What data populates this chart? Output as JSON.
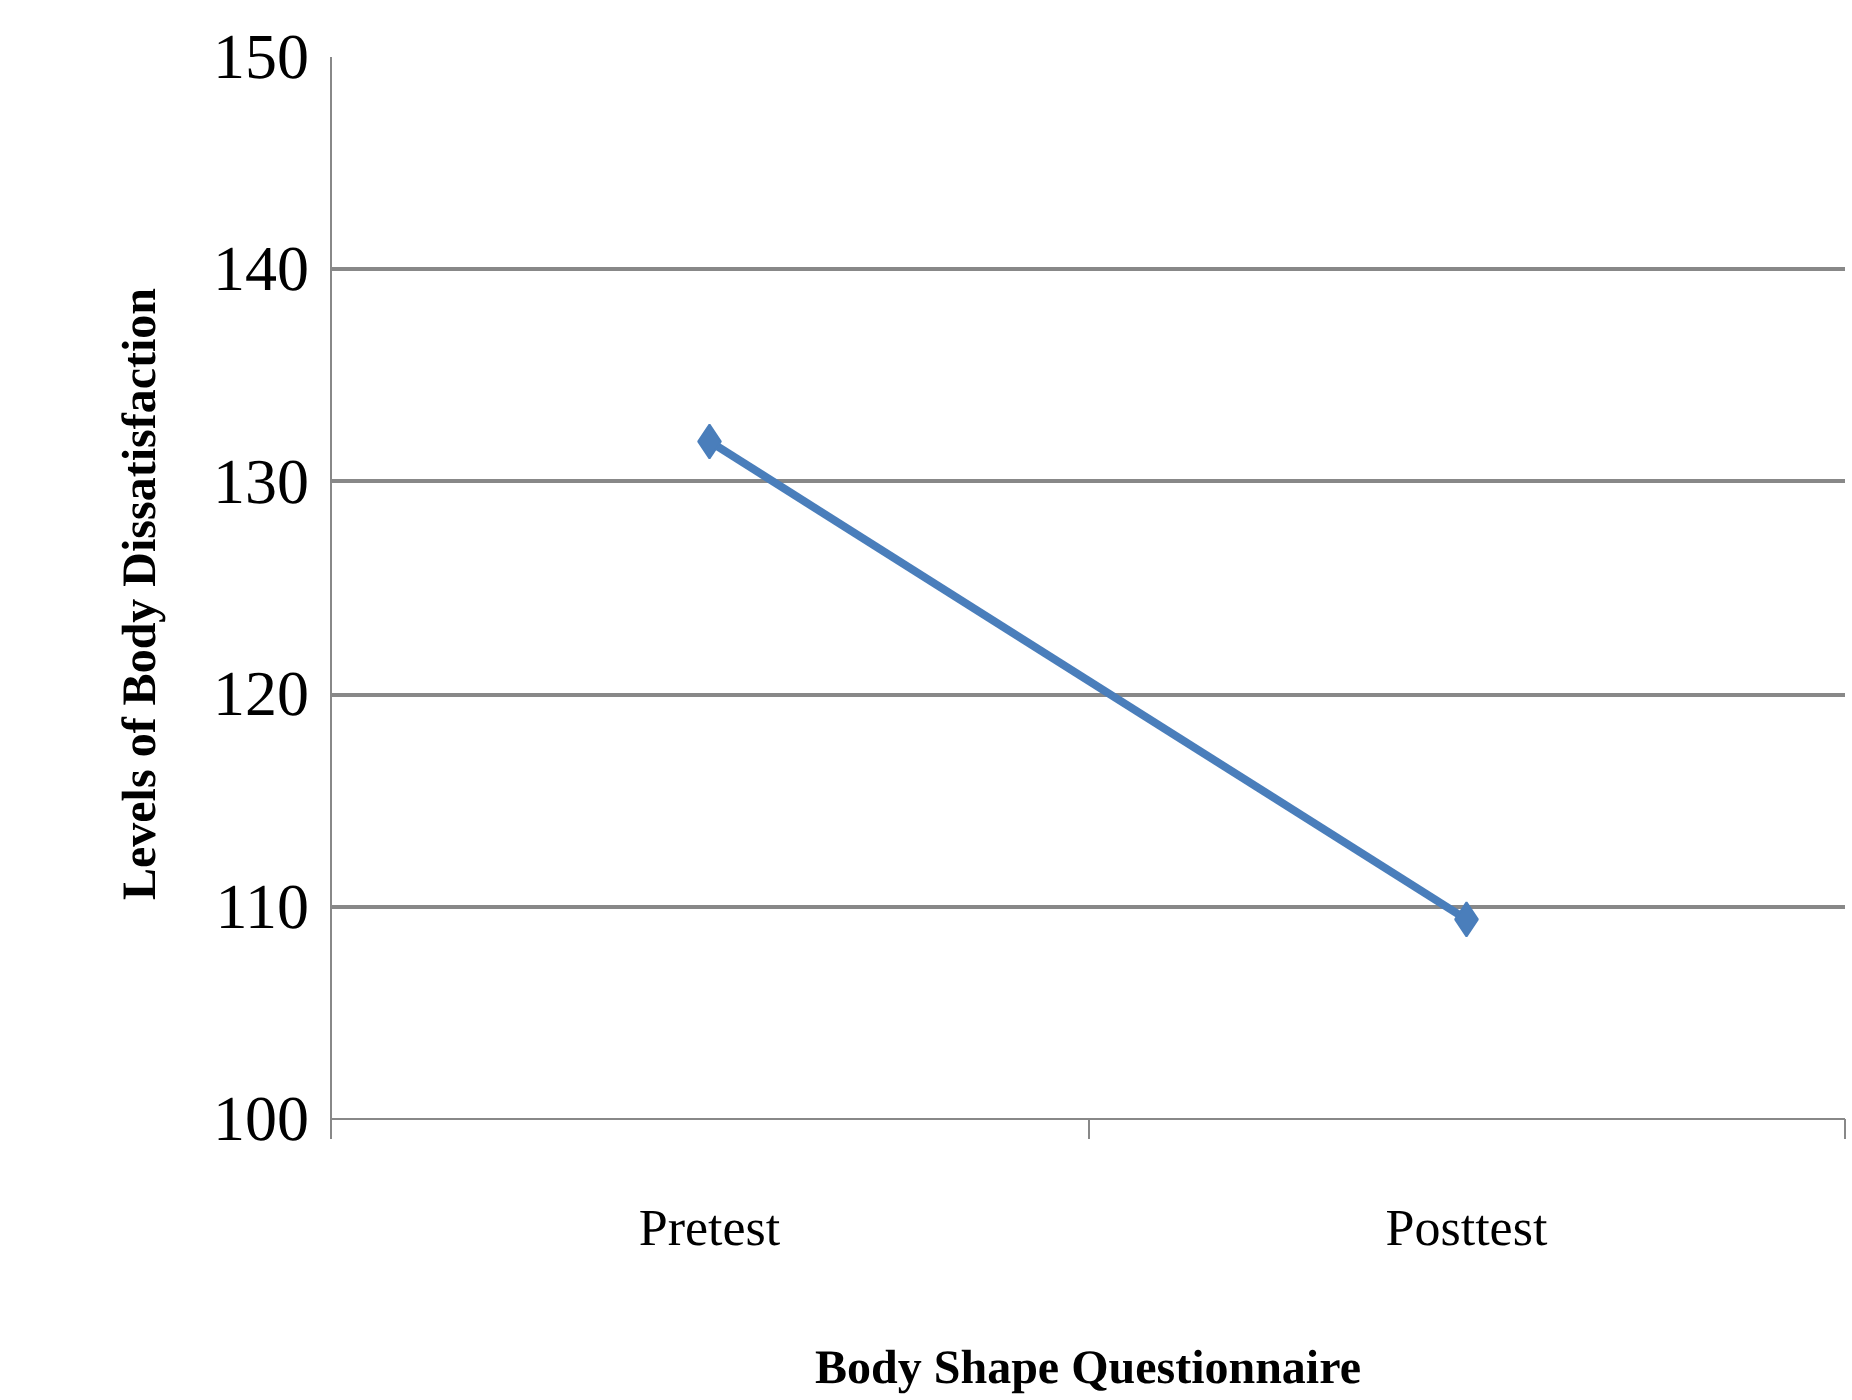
{
  "chart_data": {
    "type": "line",
    "categories": [
      "Pretest",
      "Posttest"
    ],
    "series": [
      {
        "color": "#4a7ebb",
        "values": [
          131.9,
          109.4
        ]
      }
    ],
    "xlabel": "Body Shape Questionnaire",
    "ylabel": "Levels  of Body Dissatisfaction",
    "ylim": [
      100,
      150
    ],
    "yticks": [
      100,
      110,
      120,
      130,
      140,
      150
    ],
    "grid": "y",
    "marker": "diamond"
  }
}
